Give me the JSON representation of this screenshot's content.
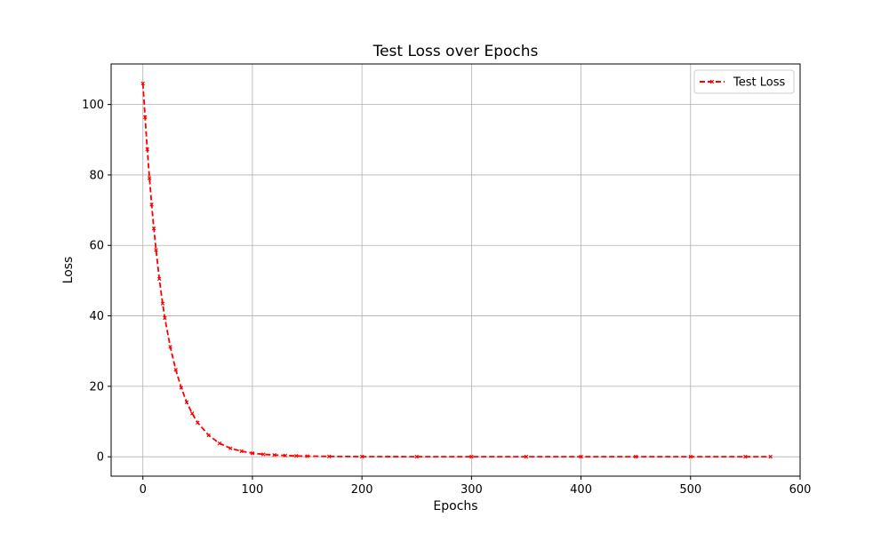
{
  "chart_data": {
    "type": "line",
    "title": "Test Loss over Epochs",
    "xlabel": "Epochs",
    "ylabel": "Loss",
    "xlim": [
      -29,
      600
    ],
    "ylim": [
      -5.5,
      111.5
    ],
    "xticks": [
      0,
      100,
      200,
      300,
      400,
      500,
      600
    ],
    "yticks": [
      0,
      20,
      40,
      60,
      80,
      100
    ],
    "grid": true,
    "legend_position": "top-right",
    "series": [
      {
        "name": "Test Loss",
        "color": "#ff0000",
        "line_style": "dashed",
        "marker": "x",
        "x": [
          0,
          2,
          4,
          6,
          8,
          10,
          12,
          15,
          18,
          20,
          25,
          30,
          35,
          40,
          45,
          50,
          60,
          70,
          80,
          90,
          100,
          110,
          120,
          130,
          140,
          150,
          170,
          200,
          250,
          300,
          350,
          400,
          450,
          500,
          550,
          573
        ],
        "y": [
          106,
          96.4,
          87.3,
          79.1,
          71.6,
          64.8,
          58.7,
          50.5,
          43.5,
          39.4,
          31.2,
          24.7,
          19.6,
          15.5,
          12.3,
          9.7,
          6.1,
          3.8,
          2.4,
          1.6,
          1.0,
          0.7,
          0.5,
          0.35,
          0.25,
          0.18,
          0.1,
          0.05,
          0.02,
          0.01,
          0.01,
          0.01,
          0.01,
          0.01,
          0.01,
          0.01
        ]
      }
    ]
  }
}
